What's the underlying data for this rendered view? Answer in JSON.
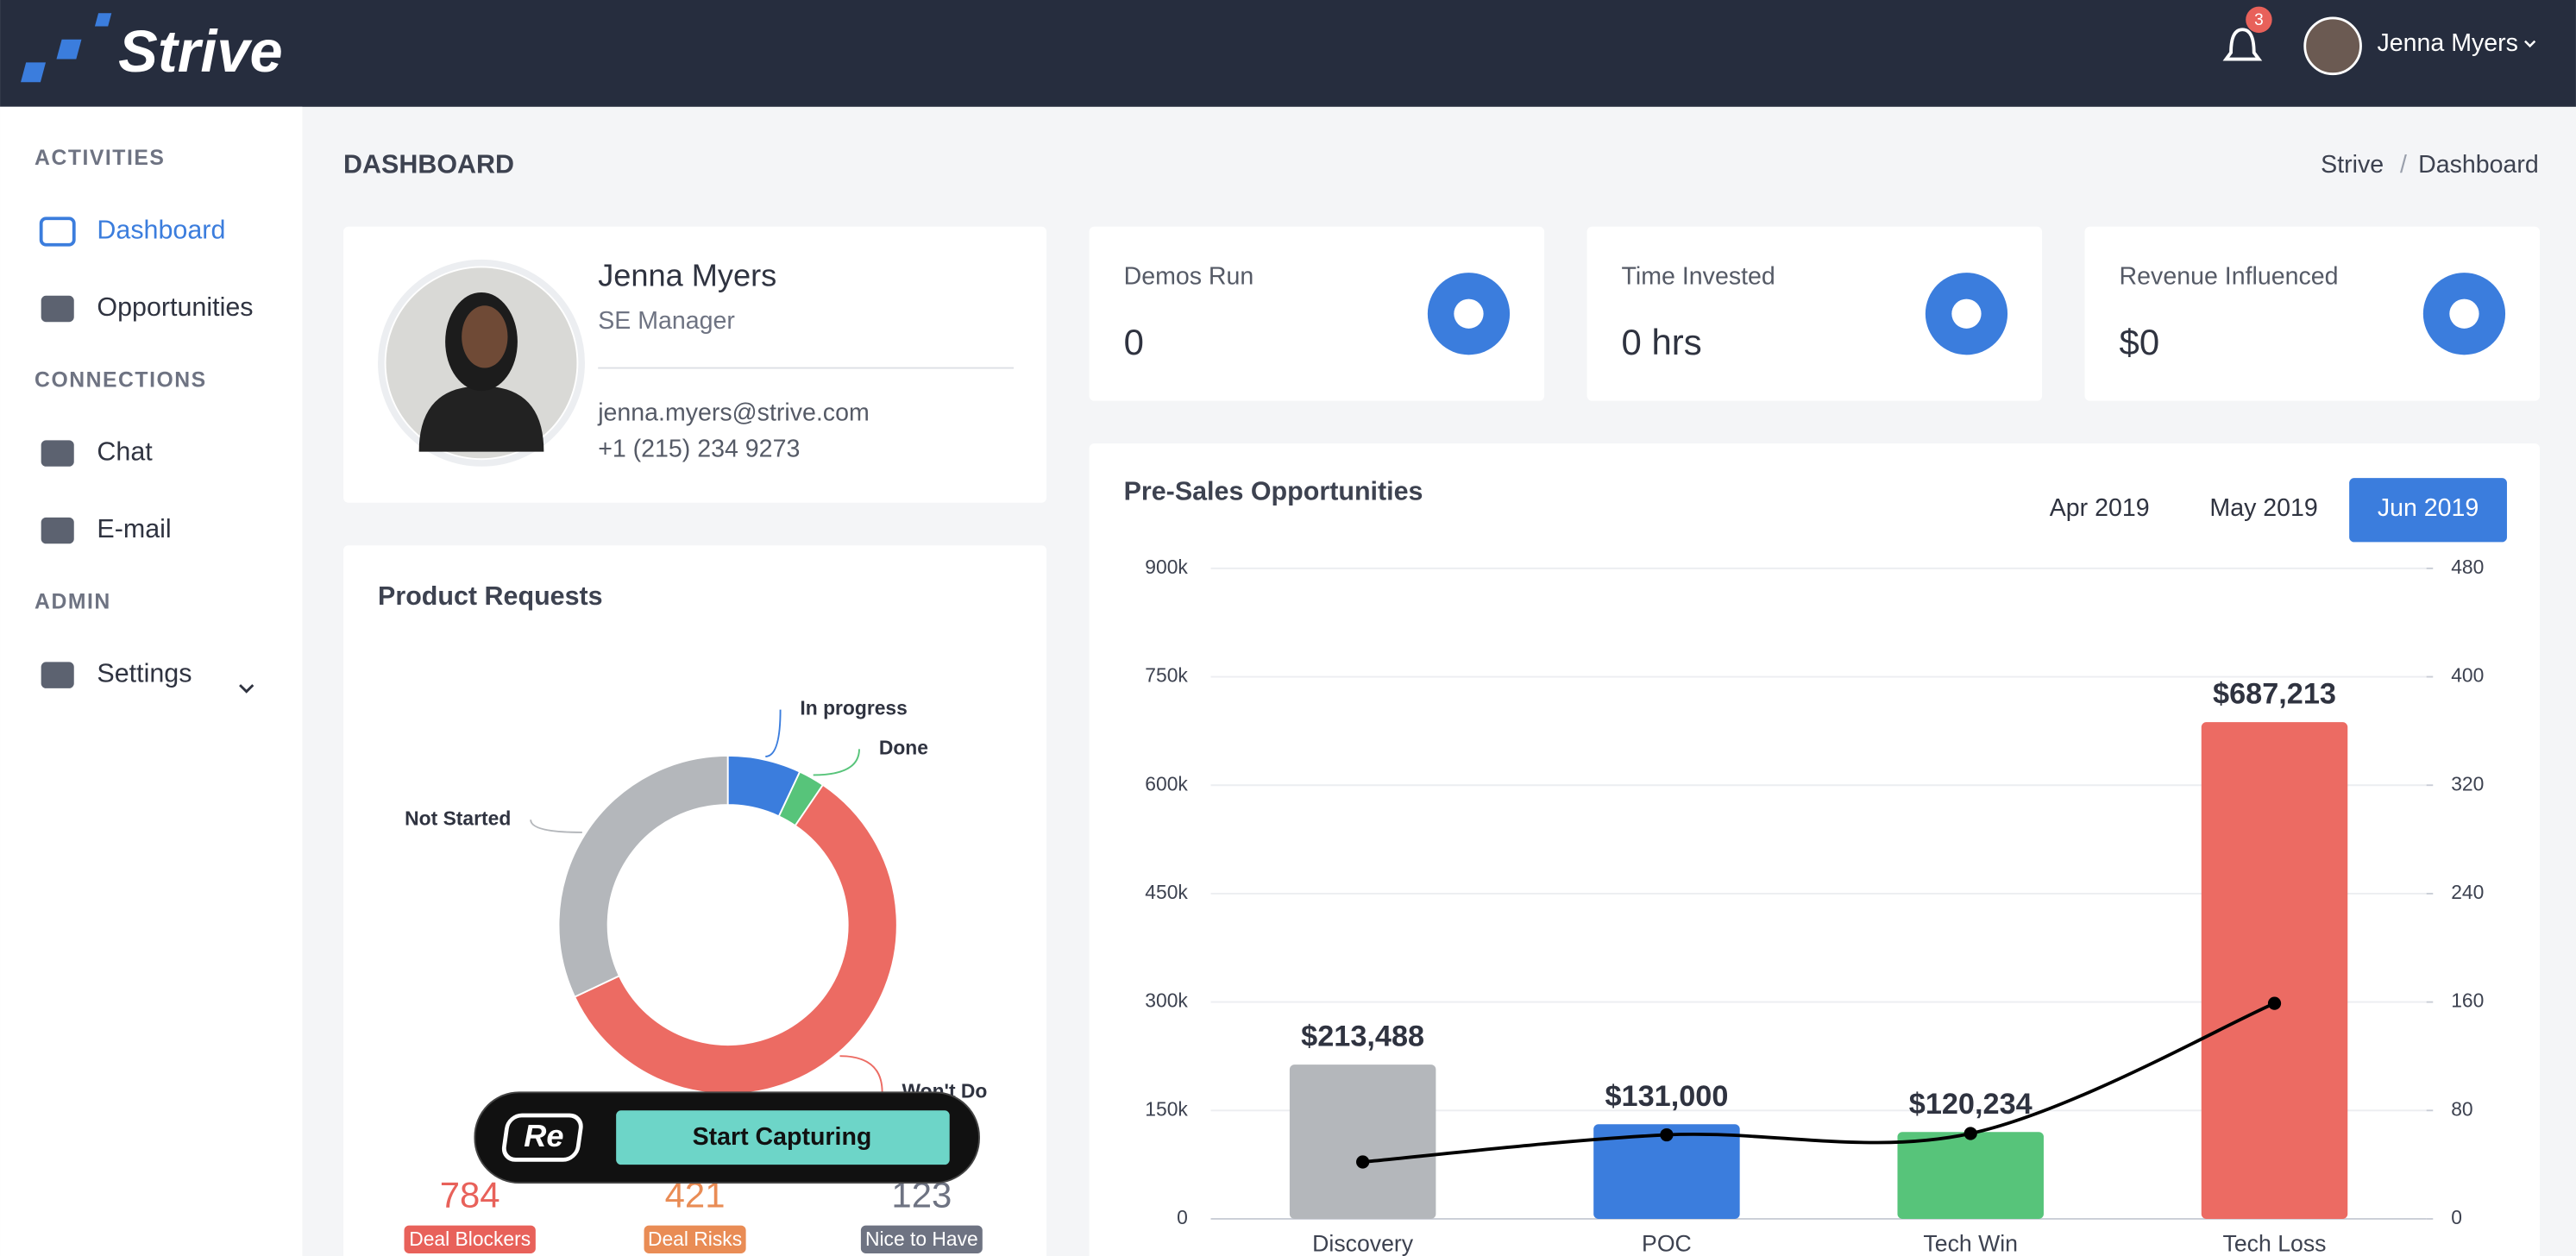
{
  "header": {
    "logo": "Strive",
    "notifications": "3",
    "user": "Jenna Myers"
  },
  "sidebar": {
    "sections": [
      {
        "title": "ACTIVITIES",
        "items": [
          "Dashboard",
          "Opportunities"
        ]
      },
      {
        "title": "CONNECTIONS",
        "items": [
          "Chat",
          "E-mail"
        ]
      },
      {
        "title": "ADMIN",
        "items": [
          "Settings"
        ]
      }
    ]
  },
  "page": {
    "title": "DASHBOARD",
    "breadcrumb": [
      "Strive",
      "Dashboard"
    ],
    "breadcrumb_separator": "/"
  },
  "profile": {
    "name": "Jenna Myers",
    "role": "SE Manager",
    "email": "jenna.myers@strive.com",
    "phone": "+1 (215) 234 9273"
  },
  "stats": [
    {
      "label": "Demos Run",
      "value": "0"
    },
    {
      "label": "Time Invested",
      "value": "0 hrs"
    },
    {
      "label": "Revenue Influenced",
      "value": "$0"
    }
  ],
  "product_requests": {
    "summary": [
      {
        "value": 784,
        "label": "Deal Blockers",
        "color": "#e8615a"
      },
      {
        "value": 421,
        "label": "Deal Risks",
        "color": "#e98c55"
      },
      {
        "value": 123,
        "label": "Nice to Have",
        "color": "#6e7382"
      }
    ]
  },
  "chart_data": [
    {
      "type": "donut",
      "title": "Product Requests",
      "categories": [
        "In progress",
        "Done",
        "Won't Do",
        "Not Started"
      ],
      "values": [
        7,
        2.5,
        58.5,
        32
      ],
      "colors": [
        "#3b7ddd",
        "#57c47a",
        "#ec6b63",
        "#b4b7bb"
      ]
    },
    {
      "type": "bar-line",
      "title": "Pre-Sales Opportunities",
      "periods": [
        "Apr 2019",
        "May 2019",
        "Jun 2019"
      ],
      "selected": 2,
      "categories": [
        "Discovery",
        "POC",
        "Tech Win",
        "Tech Loss"
      ],
      "series": [
        {
          "type": "bar",
          "colors": [
            "#b4b7bb",
            "#3b7ddd",
            "#57c47a",
            "#ec6b63"
          ],
          "values": [
            213488,
            131000,
            120234,
            687213
          ],
          "value_labels": [
            "$213,488",
            "$131,000",
            "$120,234",
            "$687,213"
          ]
        },
        {
          "type": "line",
          "axis": "y2",
          "color": "#000000",
          "values": [
            42,
            62,
            63,
            159
          ]
        }
      ],
      "ylim": [
        0,
        900000
      ],
      "yticks": [
        {
          "value": 0,
          "label": "0"
        },
        {
          "value": 150000,
          "label": "150k"
        },
        {
          "value": 300000,
          "label": "300k"
        },
        {
          "value": 450000,
          "label": "450k"
        },
        {
          "value": 600000,
          "label": "600k"
        },
        {
          "value": 750000,
          "label": "750k"
        },
        {
          "value": 900000,
          "label": "900k"
        }
      ],
      "y2lim": [
        0,
        480
      ],
      "y2ticks": [
        0,
        80,
        160,
        240,
        320,
        400,
        480
      ],
      "grid": true
    }
  ],
  "overlay": {
    "logo": "Re",
    "button": "Start Capturing"
  }
}
